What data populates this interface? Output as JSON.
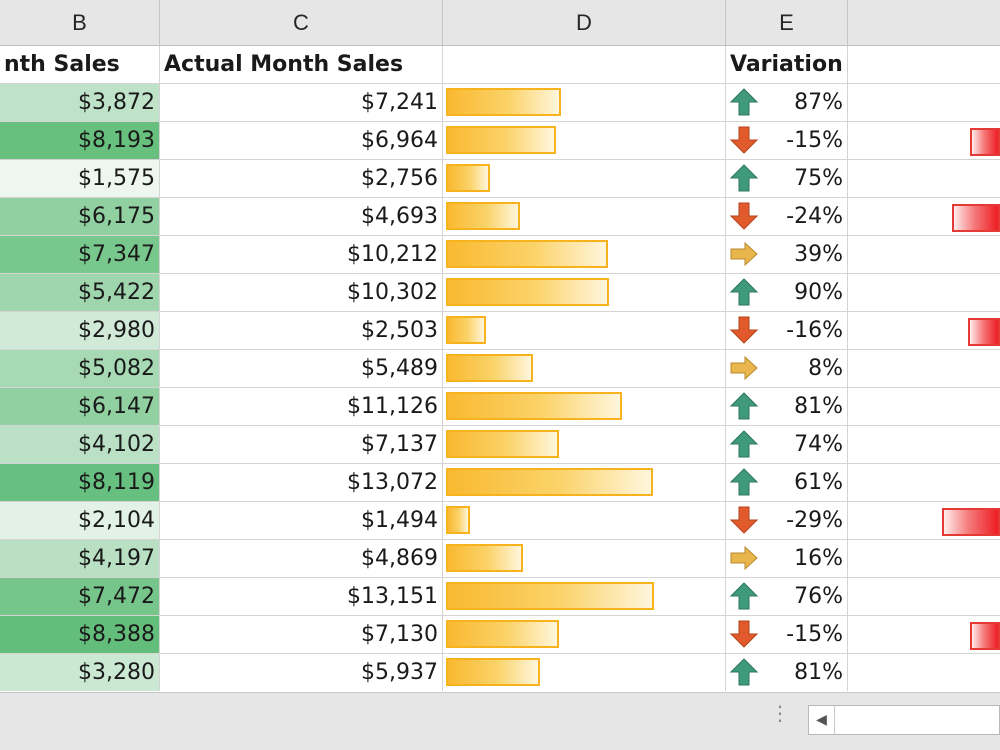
{
  "columns": [
    "B",
    "C",
    "D",
    "E",
    ""
  ],
  "headers": {
    "b": "nth Sales",
    "c": "Actual Month Sales",
    "d": "",
    "e": "Variation"
  },
  "colors": {
    "green_scale_light": "#eef6f0",
    "green_scale_dark": "#63be7b",
    "databar_orange": "#f9b930",
    "negative_bar_red": "#ed1c24",
    "arrow_up": "#3f9a7a",
    "arrow_down": "#e05a2b",
    "arrow_side": "#e8b64c"
  },
  "rows": [
    {
      "b": "$3,872",
      "c": "$7,241",
      "c_value": 7241,
      "e": "87%",
      "e_value": 87,
      "icon": "arrow-up-icon"
    },
    {
      "b": "$8,193",
      "c": "$6,964",
      "c_value": 6964,
      "e": "-15%",
      "e_value": -15,
      "icon": "arrow-down-icon"
    },
    {
      "b": "$1,575",
      "c": "$2,756",
      "c_value": 2756,
      "e": "75%",
      "e_value": 75,
      "icon": "arrow-up-icon"
    },
    {
      "b": "$6,175",
      "c": "$4,693",
      "c_value": 4693,
      "e": "-24%",
      "e_value": -24,
      "icon": "arrow-down-icon"
    },
    {
      "b": "$7,347",
      "c": "$10,212",
      "c_value": 10212,
      "e": "39%",
      "e_value": 39,
      "icon": "arrow-right-icon"
    },
    {
      "b": "$5,422",
      "c": "$10,302",
      "c_value": 10302,
      "e": "90%",
      "e_value": 90,
      "icon": "arrow-up-icon"
    },
    {
      "b": "$2,980",
      "c": "$2,503",
      "c_value": 2503,
      "e": "-16%",
      "e_value": -16,
      "icon": "arrow-down-icon"
    },
    {
      "b": "$5,082",
      "c": "$5,489",
      "c_value": 5489,
      "e": "8%",
      "e_value": 8,
      "icon": "arrow-right-icon"
    },
    {
      "b": "$6,147",
      "c": "$11,126",
      "c_value": 11126,
      "e": "81%",
      "e_value": 81,
      "icon": "arrow-up-icon"
    },
    {
      "b": "$4,102",
      "c": "$7,137",
      "c_value": 7137,
      "e": "74%",
      "e_value": 74,
      "icon": "arrow-up-icon"
    },
    {
      "b": "$8,119",
      "c": "$13,072",
      "c_value": 13072,
      "e": "61%",
      "e_value": 61,
      "icon": "arrow-up-icon"
    },
    {
      "b": "$2,104",
      "c": "$1,494",
      "c_value": 1494,
      "e": "-29%",
      "e_value": -29,
      "icon": "arrow-down-icon"
    },
    {
      "b": "$4,197",
      "c": "$4,869",
      "c_value": 4869,
      "e": "16%",
      "e_value": 16,
      "icon": "arrow-right-icon"
    },
    {
      "b": "$7,472",
      "c": "$13,151",
      "c_value": 13151,
      "e": "76%",
      "e_value": 76,
      "icon": "arrow-up-icon"
    },
    {
      "b": "$8,388",
      "c": "$7,130",
      "c_value": 7130,
      "e": "-15%",
      "e_value": -15,
      "icon": "arrow-down-icon"
    },
    {
      "b": "$3,280",
      "c": "$5,937",
      "c_value": 5937,
      "e": "81%",
      "e_value": 81,
      "icon": "arrow-up-icon"
    }
  ]
}
